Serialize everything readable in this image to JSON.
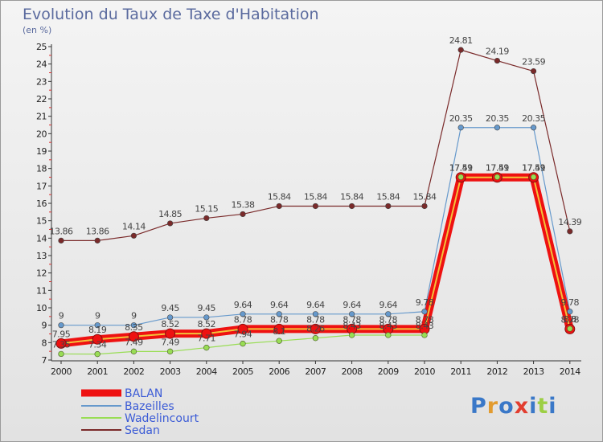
{
  "header": {
    "title": "Evolution du Taux de Taxe d'Habitation",
    "subtitle": "(en %)"
  },
  "logo": {
    "text": "Proxiti"
  },
  "chart_data": {
    "type": "line",
    "title": "Evolution du Taux de Taxe d'Habitation",
    "ylabel": "(en %)",
    "xlabel": "",
    "x": [
      "2000",
      "2001",
      "2002",
      "2003",
      "2004",
      "2005",
      "2006",
      "2007",
      "2008",
      "2009",
      "2010",
      "2011",
      "2012",
      "2013",
      "2014"
    ],
    "yticks": [
      7,
      8,
      9,
      10,
      11,
      12,
      13,
      14,
      15,
      16,
      17,
      18,
      19,
      20,
      21,
      22,
      23,
      24,
      25
    ],
    "ylim": [
      7,
      25
    ],
    "grid": false,
    "legend": "bottom-left",
    "series": [
      {
        "name": "BALAN",
        "color": "#ee1111",
        "values": [
          7.95,
          8.19,
          8.35,
          8.52,
          8.52,
          8.78,
          8.78,
          8.78,
          8.78,
          8.78,
          8.78,
          17.49,
          17.49,
          17.49,
          8.78
        ],
        "labels": [
          "7.95",
          "8.19",
          "8.35",
          "8.52",
          "8.52",
          "8.78",
          "8.78",
          "8.78",
          "8.78",
          "8.78",
          "8.78",
          "17.49",
          "17.49",
          "17.49",
          "8.78"
        ]
      },
      {
        "name": "Bazeilles",
        "color": "#6699cc",
        "values": [
          9,
          9,
          9,
          9.45,
          9.45,
          9.64,
          9.64,
          9.64,
          9.64,
          9.64,
          9.78,
          20.35,
          20.35,
          20.35,
          9.78
        ],
        "labels": [
          "9",
          "9",
          "9",
          "9.45",
          "9.45",
          "9.64",
          "9.64",
          "9.64",
          "9.64",
          "9.64",
          "9.78",
          "20.35",
          "20.35",
          "20.35",
          "9.78"
        ]
      },
      {
        "name": "Wadelincourt",
        "color": "#99dd55",
        "values": [
          7.35,
          7.34,
          7.49,
          7.49,
          7.71,
          7.94,
          8.1,
          8.26,
          8.43,
          8.43,
          8.43,
          17.51,
          17.51,
          17.51,
          8.8
        ],
        "labels": [
          "7.35",
          "7.34",
          "7.49",
          "7.49",
          "7.71",
          "7.94",
          "8.1",
          "8.26",
          "8.43",
          "8.43",
          "8.43",
          "17.51",
          "17.51",
          "17.51",
          "8.8"
        ]
      },
      {
        "name": "Sedan",
        "color": "#7a2a2a",
        "values": [
          13.86,
          13.86,
          14.14,
          14.85,
          15.15,
          15.38,
          15.84,
          15.84,
          15.84,
          15.84,
          15.84,
          24.81,
          24.19,
          23.59,
          14.39
        ],
        "labels": [
          "13.86",
          "13.86",
          "14.14",
          "14.85",
          "15.15",
          "15.38",
          "15.84",
          "15.84",
          "15.84",
          "15.84",
          "15.84",
          "24.81",
          "24.19",
          "23.59",
          "14.39"
        ]
      }
    ]
  }
}
